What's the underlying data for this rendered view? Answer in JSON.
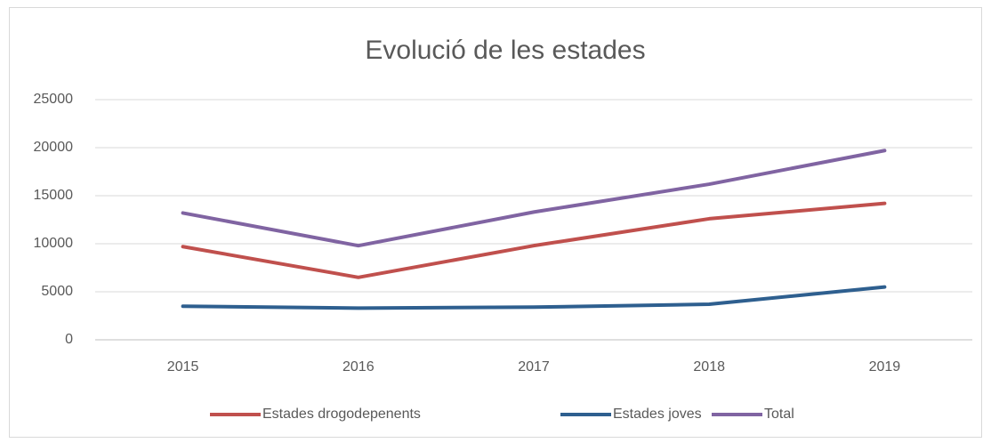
{
  "chart_data": {
    "type": "line",
    "title": "Evolució de les estades",
    "categories": [
      "2015",
      "2016",
      "2017",
      "2018",
      "2019"
    ],
    "series": [
      {
        "name": "Estades drogodepenents",
        "color": "#c0504d",
        "values": [
          9700,
          6500,
          9800,
          12600,
          14200
        ]
      },
      {
        "name": "Estades joves",
        "color": "#2e5f8f",
        "values": [
          3500,
          3300,
          3400,
          3700,
          5500
        ]
      },
      {
        "name": "Total",
        "color": "#8064a2",
        "values": [
          13200,
          9800,
          13300,
          16200,
          19700
        ]
      }
    ],
    "ylim": [
      0,
      25000
    ],
    "yticks": [
      0,
      5000,
      10000,
      15000,
      20000,
      25000
    ],
    "grid": true,
    "legend": "bottom"
  }
}
